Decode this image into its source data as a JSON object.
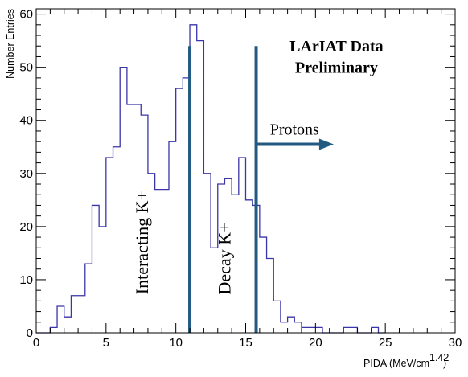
{
  "chart_data": {
    "type": "histogram",
    "xlabel": "PIDA (MeV/cm",
    "xlabel_exponent": "1.42",
    "xlabel_close": ")",
    "ylabel": "Number Entries",
    "xlim": [
      0,
      30
    ],
    "ylim": [
      0,
      61
    ],
    "x_ticks": [
      0,
      5,
      10,
      15,
      20,
      25,
      30
    ],
    "y_ticks": [
      0,
      10,
      20,
      30,
      40,
      50,
      60
    ],
    "bin_width": 0.5,
    "bin_edges_start": 0,
    "values": [
      0,
      0,
      1,
      5,
      3,
      7,
      7,
      13,
      24,
      20,
      33,
      35,
      50,
      43,
      43,
      41,
      30,
      27,
      27,
      36,
      46,
      48,
      58,
      55,
      30,
      16,
      28,
      29,
      26,
      33,
      25,
      24,
      18,
      14,
      6,
      2,
      3,
      2,
      1,
      1,
      1,
      0,
      0,
      0,
      1,
      1,
      0,
      0,
      1,
      0
    ],
    "series_color": "#3a36a8",
    "annotations": [
      {
        "text": "LArIAT Data",
        "x": 21.5,
        "y": 53
      },
      {
        "text": "Preliminary",
        "x": 21.5,
        "y": 49
      },
      {
        "text": "Protons",
        "x": 18.5,
        "y": 37.3
      },
      {
        "text": "Interacting K+",
        "x": 8.0,
        "y": 17,
        "rotated": true
      },
      {
        "text": "Decay K+",
        "x": 13.9,
        "y": 14,
        "rotated": true
      }
    ],
    "vertical_lines": [
      11.0,
      15.75
    ],
    "vertical_line_top": 54,
    "vertical_line_color": "#235a82",
    "arrow": {
      "from_x": 15.75,
      "to_x": 21.3,
      "y": 35.5,
      "color": "#235a82"
    }
  }
}
